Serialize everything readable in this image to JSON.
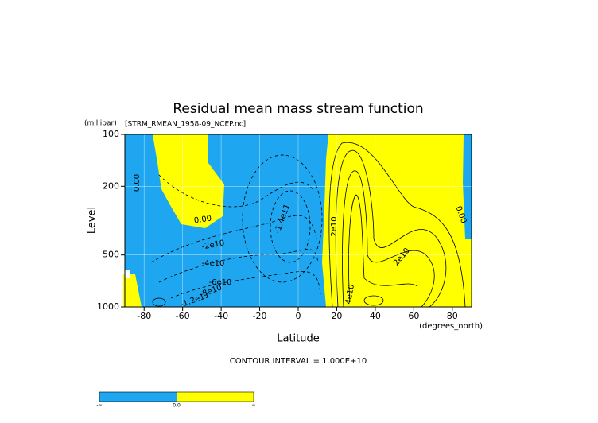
{
  "chart_data": {
    "type": "contour",
    "title": "Residual mean mass stream function",
    "subtitle": "[STRM_RMEAN_1958-09_NCEP.nc]",
    "y_unit": "(millibar)",
    "x_unit": "(degrees_north)",
    "xlabel": "Latitude",
    "ylabel": "Level",
    "note": "CONTOUR INTERVAL = 1.000E+10",
    "xlim": [
      -90,
      90
    ],
    "xticks": [
      -80,
      -60,
      -40,
      -20,
      0,
      20,
      40,
      60,
      80
    ],
    "ylim": [
      1000,
      100
    ],
    "yticks": [
      100,
      200,
      500,
      1000
    ],
    "yscale": "log",
    "grid": true,
    "negative_color": "#1ea7f0",
    "positive_color": "#ffff00",
    "contour_labels": [
      "0.00",
      "0.00",
      "0.00",
      "-2e10",
      "-4e10",
      "-6e10",
      "-8e10",
      "-1.2e11",
      "-1.4e11",
      "2e10",
      "2e10",
      "4e10"
    ],
    "colorbar_labels": [
      "-∞",
      "0.0",
      "∞"
    ]
  }
}
